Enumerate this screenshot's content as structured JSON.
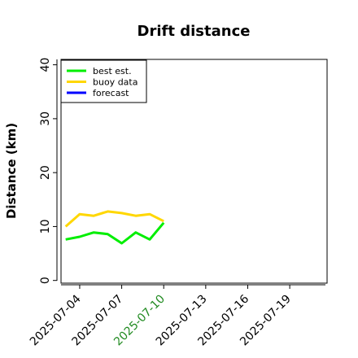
{
  "chart_data": {
    "type": "line",
    "title": "Drift distance",
    "xlabel": "",
    "ylabel": "Distance (km)",
    "ylim": [
      -0.5,
      41
    ],
    "yticks": [
      0,
      10,
      20,
      30,
      40
    ],
    "xlim": [
      "2025-07-02 16:00",
      "2025-07-21 16:00"
    ],
    "xticks": [
      "2025-07-04",
      "2025-07-07",
      "2025-07-10",
      "2025-07-13",
      "2025-07-16",
      "2025-07-19"
    ],
    "highlight_tick": "2025-07-10",
    "highlight_color": "#228B22",
    "grid": false,
    "legend_position": "top-left",
    "series": [
      {
        "name": "best est.",
        "color": "#00ee00",
        "x": [
          "2025-07-03 00:00",
          "2025-07-04 00:00",
          "2025-07-05 00:00",
          "2025-07-06 00:00",
          "2025-07-07 00:00",
          "2025-07-08 00:00",
          "2025-07-09 00:00",
          "2025-07-10 00:00"
        ],
        "y": [
          7.6,
          8.1,
          8.9,
          8.6,
          6.9,
          8.9,
          7.6,
          10.7
        ]
      },
      {
        "name": "buoy data",
        "color": "#ffd700",
        "x": [
          "2025-07-03 00:00",
          "2025-07-04 00:00",
          "2025-07-05 00:00",
          "2025-07-06 00:00",
          "2025-07-07 00:00",
          "2025-07-08 00:00",
          "2025-07-09 00:00",
          "2025-07-10 00:00"
        ],
        "y": [
          10.0,
          12.3,
          12.0,
          12.8,
          12.5,
          12.0,
          12.3,
          11.0
        ]
      },
      {
        "name": "forecast",
        "color": "#0000ff",
        "x": [],
        "y": []
      }
    ]
  }
}
